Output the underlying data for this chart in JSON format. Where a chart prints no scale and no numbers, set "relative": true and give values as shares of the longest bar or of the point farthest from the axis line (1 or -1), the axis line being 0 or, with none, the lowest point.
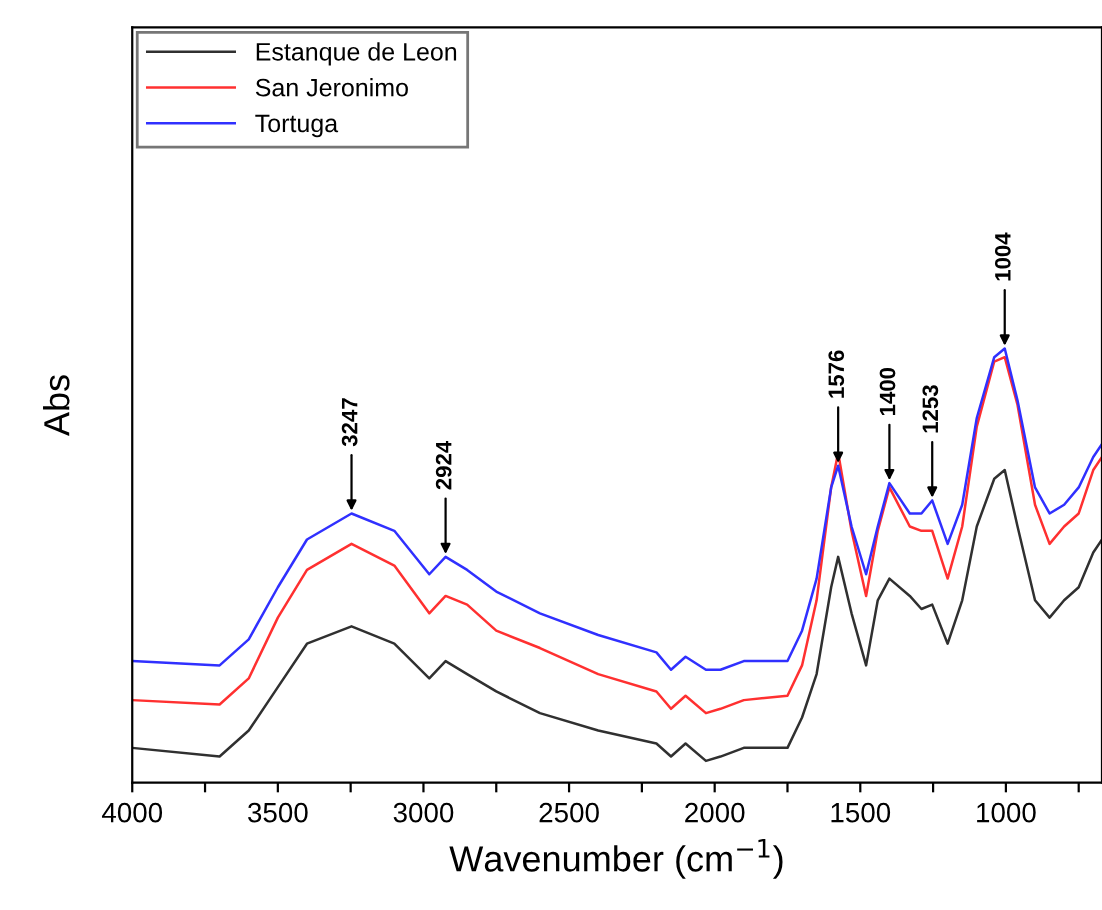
{
  "chart_data": {
    "type": "line",
    "relative": true,
    "xlabel": "Wavenumber (cm$^{−1}$)",
    "ylabel": "Abs",
    "x": [
      4000,
      3700,
      3600,
      3500,
      3400,
      3247,
      3100,
      2980,
      2924,
      2850,
      2750,
      2600,
      2400,
      2200,
      2150,
      2100,
      2030,
      1980,
      1900,
      1750,
      1700,
      1650,
      1600,
      1576,
      1530,
      1480,
      1440,
      1400,
      1330,
      1290,
      1253,
      1200,
      1150,
      1100,
      1040,
      1004,
      960,
      900,
      850,
      800,
      750,
      700,
      670
    ],
    "series": [
      {
        "name": "Estanque de Leon",
        "color": "#303030",
        "values": [
          0.08,
          0.06,
          0.12,
          0.22,
          0.32,
          0.36,
          0.32,
          0.24,
          0.28,
          0.25,
          0.21,
          0.16,
          0.12,
          0.09,
          0.06,
          0.09,
          0.05,
          0.06,
          0.08,
          0.08,
          0.15,
          0.25,
          0.45,
          0.52,
          0.39,
          0.27,
          0.42,
          0.47,
          0.43,
          0.4,
          0.41,
          0.32,
          0.42,
          0.59,
          0.7,
          0.72,
          0.59,
          0.42,
          0.38,
          0.42,
          0.45,
          0.53,
          0.56
        ]
      },
      {
        "name": "San Jeronimo",
        "color": "#ff3030",
        "values": [
          0.19,
          0.18,
          0.24,
          0.38,
          0.49,
          0.55,
          0.5,
          0.39,
          0.43,
          0.41,
          0.35,
          0.31,
          0.25,
          0.21,
          0.17,
          0.2,
          0.16,
          0.17,
          0.19,
          0.2,
          0.27,
          0.42,
          0.68,
          0.76,
          0.58,
          0.43,
          0.58,
          0.68,
          0.59,
          0.58,
          0.58,
          0.47,
          0.59,
          0.82,
          0.97,
          0.98,
          0.87,
          0.64,
          0.55,
          0.59,
          0.62,
          0.72,
          0.75
        ]
      },
      {
        "name": "Tortuga",
        "color": "#3030ff",
        "values": [
          0.28,
          0.27,
          0.33,
          0.45,
          0.56,
          0.62,
          0.58,
          0.48,
          0.52,
          0.49,
          0.44,
          0.39,
          0.34,
          0.3,
          0.26,
          0.29,
          0.26,
          0.26,
          0.28,
          0.28,
          0.35,
          0.47,
          0.68,
          0.73,
          0.59,
          0.48,
          0.59,
          0.69,
          0.62,
          0.62,
          0.65,
          0.55,
          0.64,
          0.84,
          0.98,
          1.0,
          0.88,
          0.68,
          0.62,
          0.64,
          0.68,
          0.75,
          0.78
        ]
      }
    ],
    "annotations": [
      {
        "text": "3247",
        "x": 3247,
        "y": 0.62
      },
      {
        "text": "2924",
        "x": 2924,
        "y": 0.52
      },
      {
        "text": "1576",
        "x": 1576,
        "y": 0.73
      },
      {
        "text": "1400",
        "x": 1400,
        "y": 0.69
      },
      {
        "text": "1253",
        "x": 1253,
        "y": 0.65
      },
      {
        "text": "1004",
        "x": 1004,
        "y": 1.0
      }
    ],
    "xlim": [
      4000,
      670
    ],
    "xticks": [
      4000,
      {
        "value": 3750,
        "label": null
      },
      3500,
      {
        "value": 3250,
        "label": null
      },
      3000,
      {
        "value": 2750,
        "label": null
      },
      2500,
      {
        "value": 2250,
        "label": null
      },
      2000,
      {
        "value": 1750,
        "label": null
      },
      1500,
      {
        "value": 1250,
        "label": null
      },
      1000,
      {
        "value": 750,
        "label": null
      }
    ],
    "tick_labels": "x",
    "legend": "top left",
    "grid": false,
    "line_style": "solid",
    "marker": "none"
  }
}
